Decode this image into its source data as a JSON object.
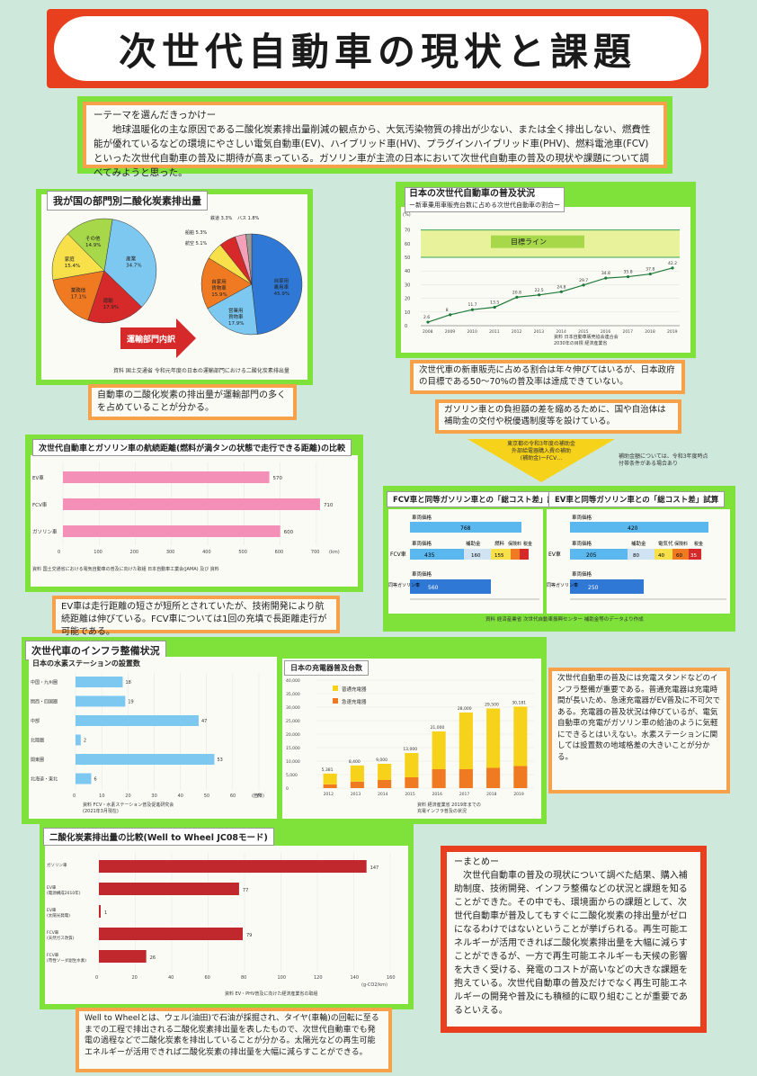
{
  "title": "次世代自動車の現状と課題",
  "intro": {
    "heading": "ーテーマを選んだきっかけー",
    "text": "地球温暖化の主な原因である二酸化炭素排出量削減の観点から、大気汚染物質の排出が少ない、または全く排出しない、燃費性能が優れているなどの環境にやさしい電気自動車(EV)、ハイブリッド車(HV)、プラグインハイブリッド車(PHV)、燃料電池車(FCV)といった次世代自動車の普及に期待が高まっている。ガソリン車が主流の日本において次世代自動車の普及の現状や課題について調べてみようと思った。"
  },
  "co2_sector": {
    "title": "我が国の部門別二酸化炭素排出量",
    "arrow_label": "運輸部門内訳",
    "pie1": [
      "その他 14.9%",
      "産業 34.7%",
      "家庭 15.4%",
      "業務他 17.1%",
      "運輸 17.9%"
    ],
    "pie2": [
      "鉄道 3.3%",
      "バス 1.8%",
      "航空 5.1%",
      "船舶 5.3%",
      "自家用 乗用車 45.9%",
      "営業用 貨物車 17.9%",
      "自家用 貨物車 15.9%"
    ],
    "source": "資料 国土交通省 令和元年度の日本の運輸部門における二酸化炭素排出量",
    "comment": "自動車の二酸化炭素の排出量が運輸部門の多くを占めていることが分かる。"
  },
  "share": {
    "title": "日本の次世代自動車の普及状況",
    "subtitle": "ー新車乗用車販売台数に占める次世代自動車の割合ー",
    "target_label": "目標ライン",
    "source": "資料 日本自動車販売協会連合会\n2030年の目標 経済産業省",
    "comment1": "次世代車の新車販売に占める割合は年々伸びてはいるが、日本政府の目標である50〜70%の普及率は達成できていない。",
    "comment2": "ガソリン車との負担額の差を縮めるために、国や自治体は補助金の交付や税優遇制度等を設けている。",
    "yellow_note": "東京都の令和3年度の補助金\n外部給電器購入費の補助\n(補助金)ーFCV…",
    "note_right": "補助金額については、令和3年度時点\n付帯条件がある場合あり"
  },
  "range_chart": {
    "title": "次世代自動車とガソリン車の航続距離(燃料が満タンの状態で走行できる距離)の比較",
    "source": "資料 国土交通省における電気自動車の普及に向けた取組 日本自動車工業会(JAMA) 及び 資料",
    "comment": "EV車は走行距離の短さが短所とされていたが、技術開発により航続距離は伸びている。FCV車については1回の充填で長距離走行が可能である。"
  },
  "cost_fcv": {
    "title": "FCV車と同等ガソリン車との「総コスト差」試算",
    "labels": [
      "車両価格",
      "車両価格",
      "補助金",
      "燃料",
      "保険料",
      "税金",
      "車両価格"
    ],
    "group_fcv": "FCV車",
    "group_gas": "同等ガソリン車"
  },
  "cost_ev": {
    "title": "EV車と同等ガソリン車との「総コスト差」試算",
    "labels": [
      "車両価格",
      "車両価格",
      "補助金",
      "電気代",
      "保険料",
      "税金",
      "車両価格"
    ],
    "group_ev": "EV車",
    "group_gas": "同等ガソリン車",
    "source": "資料 経済産業省 次世代自動車振興センター 補助金等のデータより作成"
  },
  "infra": {
    "title": "次世代車のインフラ整備状況",
    "stations_title": "日本の水素ステーションの設置数",
    "stations_source": "資料 FCV・水素ステーション普及促進研究会\n(2021年3月現在)",
    "chargers_title": "日本の充電器普及台数",
    "chargers_legend": [
      "普通充電器",
      "急速充電器"
    ],
    "chargers_source": "資料 経済産業省 2019年までの\n充電インフラ普及の状況",
    "unit": "(箇所)",
    "comment": "次世代自動車の普及には充電スタンドなどのインフラ整備が重要である。普通充電器は充電時間が長いため、急速充電器がEV普及に不可欠である。充電器の普及状況は伸びているが、電気自動車の充電がガソリン車の給油のように気軽にできるとはいえない。水素ステーションに関しては設置数の地域格差の大きいことが分かる。"
  },
  "wtw": {
    "title": "二酸化炭素排出量の比較(Well to Wheel JC08モード)",
    "source": "資料 EV・PHV普及に向けた経済産業省の取組",
    "comment": "Well to Wheelとは、ウェル(油田)で石油が採掘され、タイヤ(車輪)の回転に至るまでの工程で排出される二酸化炭素排出量を表したもので、次世代自動車でも発電の過程などで二酸化炭素を排出していることが分かる。太陽光などの再生可能エネルギーが活用できれば二酸化炭素の排出量を大幅に減らすことができる。"
  },
  "summary": {
    "heading": "ーまとめー",
    "text": "次世代自動車の普及の現状について調べた結果、購入補助制度、技術開発、インフラ整備などの状況と課題を知ることができた。その中でも、環境面からの課題として、次世代自動車が普及してもすぐに二酸化炭素の排出量がゼロになるわけではないということが挙げられる。再生可能エネルギーが活用できれば二酸化炭素排出量を大幅に減らすことができるが、一方で再生可能エネルギーも天候の影響を大きく受ける、発電のコストが高いなどの大きな課題を抱えている。次世代自動車の普及だけでなく再生可能エネルギーの開発や普及にも積極的に取り組むことが重要であるといえる。"
  },
  "chart_data": [
    {
      "type": "pie",
      "title": "我が国の部門別二酸化炭素排出量",
      "categories": [
        "産業",
        "運輸",
        "業務他",
        "家庭",
        "その他"
      ],
      "values": [
        34.7,
        17.9,
        17.1,
        15.4,
        14.9
      ],
      "colors": [
        "#7cc8f0",
        "#d62a2a",
        "#f07a22",
        "#f7e04a",
        "#a6d84a"
      ]
    },
    {
      "type": "pie",
      "title": "運輸部門内訳",
      "categories": [
        "自家用乗用車",
        "営業用貨物車",
        "自家用貨物車",
        "船舶",
        "航空",
        "鉄道",
        "バス"
      ],
      "values": [
        45.9,
        17.9,
        15.9,
        5.3,
        5.1,
        3.3,
        1.8
      ],
      "colors": [
        "#2f78d6",
        "#7cc8f0",
        "#f07a22",
        "#f7e04a",
        "#d62a2a",
        "#f4a0b8",
        "#999999"
      ]
    },
    {
      "type": "line",
      "title": "日本の次世代自動車の普及状況",
      "x": [
        "2008",
        "2009",
        "2010",
        "2011",
        "2012",
        "2013",
        "2014",
        "2015",
        "2016",
        "2017",
        "2018",
        "2019"
      ],
      "values": [
        2.6,
        8.0,
        11.7,
        13.5,
        20.8,
        22.5,
        24.8,
        29.7,
        34.8,
        35.8,
        37.8,
        42.2
      ],
      "ylim": [
        0,
        75
      ],
      "target_range": [
        50,
        70
      ],
      "unit": "(%)"
    },
    {
      "type": "bar",
      "title": "航続距離の比較",
      "categories": [
        "EV車",
        "FCV車",
        "ガソリン車"
      ],
      "values": [
        570,
        710,
        600
      ],
      "xlim": [
        0,
        700
      ],
      "ticks": [
        0,
        100,
        200,
        300,
        400,
        500,
        600,
        700
      ],
      "unit": "(km)"
    },
    {
      "type": "bar",
      "title": "日本の水素ステーションの設置数",
      "categories": [
        "中国・九州圏",
        "関西・四国圏",
        "中部",
        "北陸圏",
        "関東圏",
        "北海道・東北"
      ],
      "values": [
        18,
        19,
        47,
        2,
        53,
        6
      ],
      "xlim": [
        0,
        70
      ],
      "unit": "(箇所)"
    },
    {
      "type": "bar",
      "title": "日本の充電器普及台数",
      "categories": [
        "2012",
        "2013",
        "2014",
        "2015",
        "2016",
        "2017",
        "2018",
        "2019"
      ],
      "series": [
        {
          "name": "普通充電器",
          "values": [
            4000,
            6000,
            6000,
            9000,
            14000,
            21000,
            22000,
            22000
          ]
        },
        {
          "name": "急速充電器",
          "values": [
            1381,
            2400,
            3000,
            4000,
            7000,
            7000,
            7500,
            8181
          ]
        }
      ],
      "totals": [
        "5,381",
        "8,400",
        "9,000",
        "13,000",
        "21,000",
        "28,000",
        "29,500",
        "30,181"
      ],
      "ylim": [
        0,
        40000
      ]
    },
    {
      "type": "bar",
      "title": "二酸化炭素排出量の比較",
      "categories": [
        "ガソリン車",
        "EV車(電源構成2010年)",
        "EV車(太陽光発電)",
        "FCV車(天然ガス改質)",
        "FCV車(苛性ソーダ副生水素)"
      ],
      "values": [
        147,
        77,
        1,
        79,
        26
      ],
      "xlim": [
        0,
        160
      ],
      "unit": "(g-CO2/km)"
    }
  ]
}
